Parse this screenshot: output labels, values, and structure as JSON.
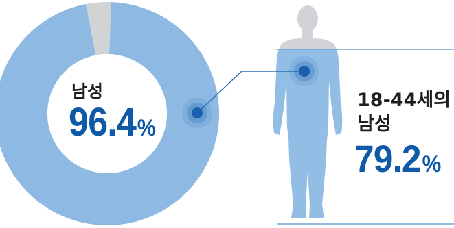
{
  "chart_data": {
    "type": "pie",
    "categories": [
      "남성"
    ],
    "values": [
      96.4
    ],
    "annotation": {
      "label_line1": "18-44세의",
      "label_line2": "남성",
      "value": 79.2
    }
  },
  "donut": {
    "label": "남성",
    "value_text": "96.4",
    "unit": "%"
  },
  "figure": {
    "label_line1": "18-44세의",
    "label_line2": "남성",
    "value_text": "79.2",
    "unit": "%"
  },
  "colors": {
    "ring_main": "#8db9e2",
    "ring_rest": "#d2d3d5",
    "body": "#92bde5",
    "body_light": "#d1d3d6",
    "accent": "#0f5aa7",
    "dot": "#1a5fae"
  }
}
